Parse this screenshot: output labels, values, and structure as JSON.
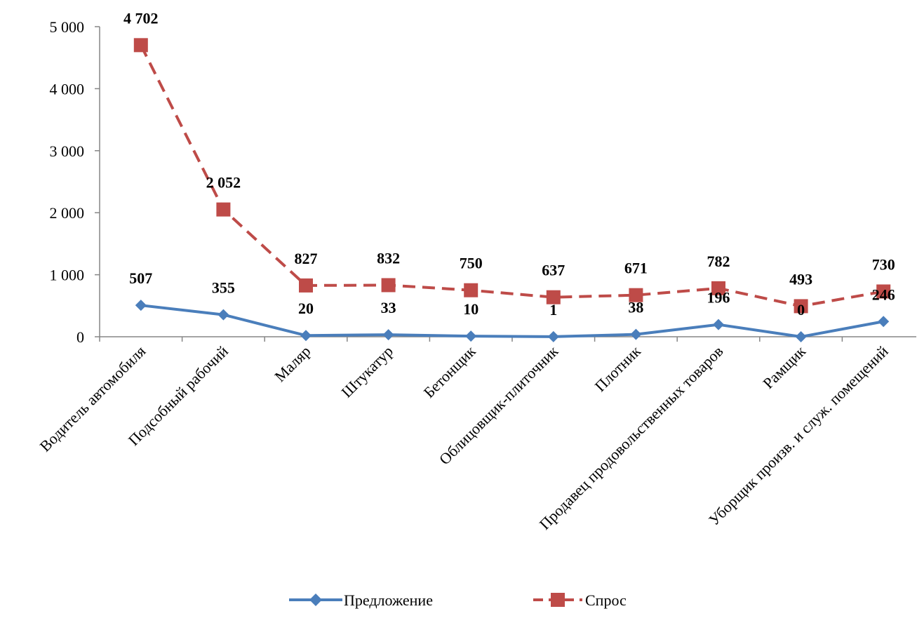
{
  "chart_data": {
    "type": "line",
    "categories": [
      "Водитель автомобиля",
      "Подсобный рабочий",
      "Маляр",
      "Штукатур",
      "Бетонщик",
      "Облицовщик-плиточник",
      "Плотник",
      "Продавец продовольственных товаров",
      "Рамщик",
      "Уборщик произв. и служ. помещений"
    ],
    "series": [
      {
        "name": "Предложение",
        "values": [
          507,
          355,
          20,
          33,
          10,
          1,
          38,
          196,
          0,
          246
        ],
        "labels": [
          "507",
          "355",
          "20",
          "33",
          "10",
          "1",
          "38",
          "196",
          "0",
          "246"
        ],
        "color": "#4a7ebb",
        "marker": "diamond",
        "dash": "solid"
      },
      {
        "name": "Спрос",
        "values": [
          4702,
          2052,
          827,
          832,
          750,
          637,
          671,
          782,
          493,
          730
        ],
        "labels": [
          "4 702",
          "2 052",
          "827",
          "832",
          "750",
          "637",
          "671",
          "782",
          "493",
          "730"
        ],
        "color": "#be4b48",
        "marker": "square",
        "dash": "dashed"
      }
    ],
    "y_ticks": [
      0,
      1000,
      2000,
      3000,
      4000,
      5000
    ],
    "y_tick_labels": [
      "0",
      "1 000",
      "2 000",
      "3 000",
      "4 000",
      "5 000"
    ],
    "ylim": [
      0,
      5000
    ],
    "xlabel": "",
    "ylabel": "",
    "title": "",
    "grid": false,
    "legend_position": "bottom"
  }
}
